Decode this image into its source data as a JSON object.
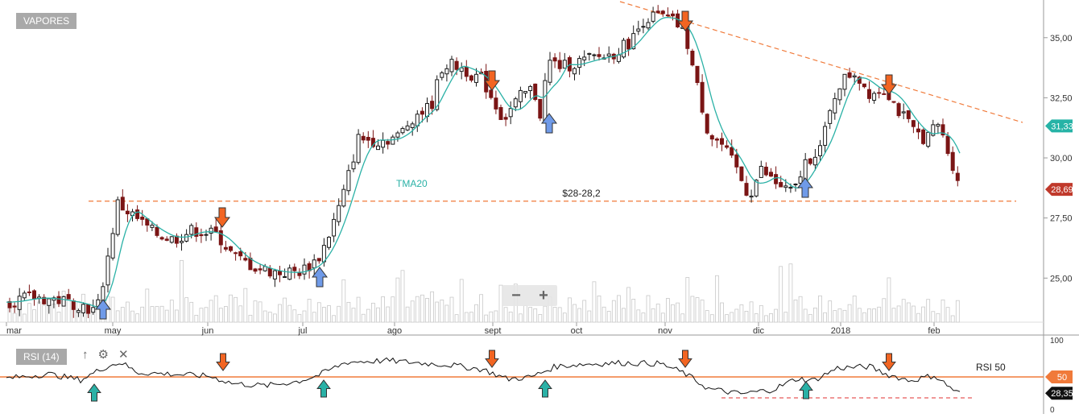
{
  "toolbar": {
    "symbol_label": "VAPORES",
    "rsi_label": "RSI (14)",
    "zoom_out": "−",
    "zoom_in": "+"
  },
  "chart_data": [
    {
      "type": "candlestick",
      "title": "VAPORES",
      "x_ticks": [
        "mar",
        "may",
        "jun",
        "jul",
        "ago",
        "sept",
        "oct",
        "nov",
        "dic",
        "2018",
        "feb"
      ],
      "y_ticks": [
        "35,00",
        "32,50",
        "30,00",
        "27,50",
        "25,00"
      ],
      "ylim": [
        23,
        36.5
      ],
      "last_price": "31,33",
      "current_price": "28,69",
      "ma_label": "TMA20",
      "support_label": "$28-28,2",
      "support_level": 28.2,
      "colors": {
        "candle_up": "#1a1a1a",
        "candle_down": "#7a1515",
        "ma": "#2ab1a6",
        "support_line": "#f07a3a",
        "trend_line": "#f07a3a",
        "down_arrow": "#f26522",
        "up_arrow": "#6f9ae8",
        "ma_price_tag": "#26b3a6",
        "price_tag": "#c0392b"
      },
      "sell_arrows": [
        "jun",
        "sept",
        "nov",
        "2018"
      ],
      "buy_arrows": [
        "may",
        "jul",
        "sept",
        "dic"
      ],
      "grid": true,
      "legend": "none"
    },
    {
      "type": "line",
      "title": "RSI (14)",
      "y_ticks": [
        "100",
        "50",
        "0"
      ],
      "ylim": [
        0,
        100
      ],
      "level_label": "RSI 50",
      "level_value": "50",
      "current_value": "28,35",
      "colors": {
        "line": "#111111",
        "level": "#f07a3a",
        "level_tag": "#f07a3a",
        "value_tag": "#111111",
        "up_arrow": "#2ab1a6",
        "down_arrow": "#f26522"
      }
    }
  ]
}
